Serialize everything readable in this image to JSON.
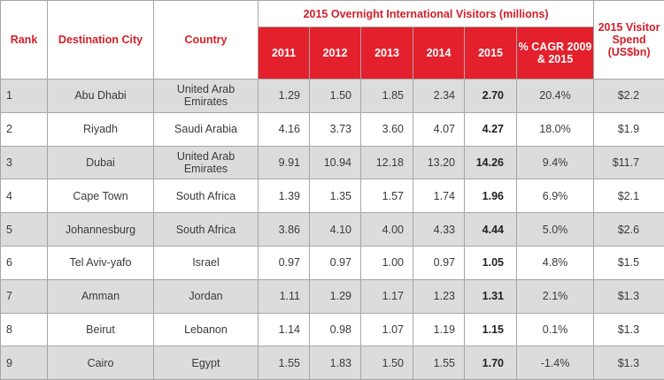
{
  "header": {
    "rank": "Rank",
    "city": "Destination City",
    "country": "Country",
    "group": "2015 Overnight International Visitors (millions)",
    "spend": "2015 Visitor Spend (US$bn)",
    "years": [
      "2011",
      "2012",
      "2013",
      "2014",
      "2015"
    ],
    "cagr": "% CAGR 2009 & 2015"
  },
  "rows": [
    {
      "rank": "1",
      "city": "Abu Dhabi",
      "country": "United Arab Emirates",
      "y2011": "1.29",
      "y2012": "1.50",
      "y2013": "1.85",
      "y2014": "2.34",
      "y2015": "2.70",
      "cagr": "20.4%",
      "spend": "$2.2"
    },
    {
      "rank": "2",
      "city": "Riyadh",
      "country": "Saudi Arabia",
      "y2011": "4.16",
      "y2012": "3.73",
      "y2013": "3.60",
      "y2014": "4.07",
      "y2015": "4.27",
      "cagr": "18.0%",
      "spend": "$1.9"
    },
    {
      "rank": "3",
      "city": "Dubai",
      "country": "United Arab Emirates",
      "y2011": "9.91",
      "y2012": "10.94",
      "y2013": "12.18",
      "y2014": "13.20",
      "y2015": "14.26",
      "cagr": "9.4%",
      "spend": "$11.7"
    },
    {
      "rank": "4",
      "city": "Cape Town",
      "country": "South Africa",
      "y2011": "1.39",
      "y2012": "1.35",
      "y2013": "1.57",
      "y2014": "1.74",
      "y2015": "1.96",
      "cagr": "6.9%",
      "spend": "$2.1"
    },
    {
      "rank": "5",
      "city": "Johannesburg",
      "country": "South Africa",
      "y2011": "3.86",
      "y2012": "4.10",
      "y2013": "4.00",
      "y2014": "4.33",
      "y2015": "4.44",
      "cagr": "5.0%",
      "spend": "$2.6"
    },
    {
      "rank": "6",
      "city": "Tel Aviv-yafo",
      "country": "Israel",
      "y2011": "0.97",
      "y2012": "0.97",
      "y2013": "1.00",
      "y2014": "0.97",
      "y2015": "1.05",
      "cagr": "4.8%",
      "spend": "$1.5"
    },
    {
      "rank": "7",
      "city": "Amman",
      "country": "Jordan",
      "y2011": "1.11",
      "y2012": "1.29",
      "y2013": "1.17",
      "y2014": "1.23",
      "y2015": "1.31",
      "cagr": "2.1%",
      "spend": "$1.3"
    },
    {
      "rank": "8",
      "city": "Beirut",
      "country": "Lebanon",
      "y2011": "1.14",
      "y2012": "0.98",
      "y2013": "1.07",
      "y2014": "1.19",
      "y2015": "1.15",
      "cagr": "0.1%",
      "spend": "$1.3"
    },
    {
      "rank": "9",
      "city": "Cairo",
      "country": "Egypt",
      "y2011": "1.55",
      "y2012": "1.83",
      "y2013": "1.50",
      "y2014": "1.55",
      "y2015": "1.70",
      "cagr": "-1.4%",
      "spend": "$1.3"
    }
  ],
  "colors": {
    "accent": "#e3202c",
    "header_text": "#d21f2a",
    "row_shade": "#dcdcdc",
    "border": "#a6a6a6"
  }
}
